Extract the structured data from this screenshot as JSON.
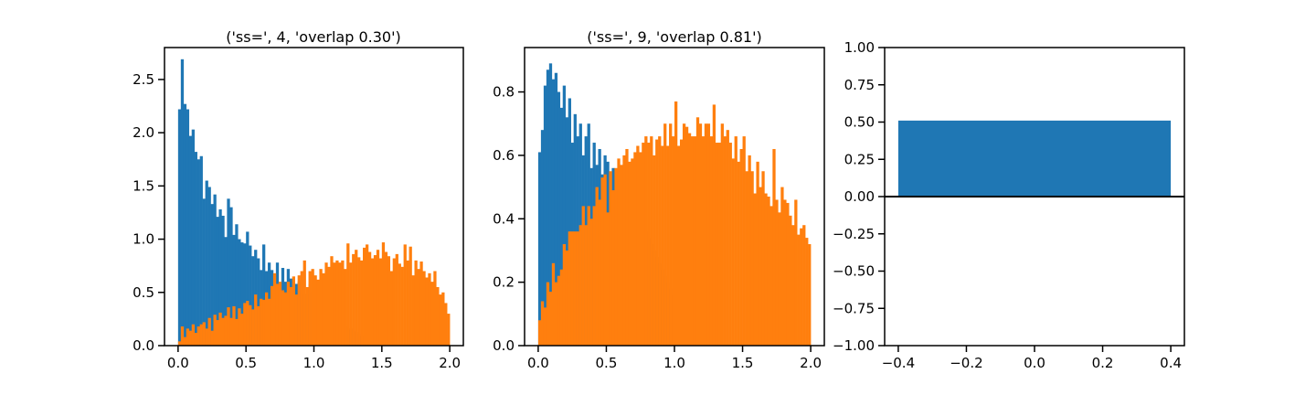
{
  "colors": {
    "series1": "#1f77b4",
    "series2": "#ff7f0e",
    "axis": "#000000",
    "background": "#ffffff"
  },
  "chart_data": [
    {
      "type": "bar",
      "subtype": "histogram",
      "title": "('ss=', 4, 'overlap 0.30')",
      "xlabel": "",
      "ylabel": "",
      "xlim": [
        -0.1,
        2.1
      ],
      "ylim": [
        0.0,
        2.8
      ],
      "xticks": [
        0.0,
        0.5,
        1.0,
        1.5,
        2.0
      ],
      "xtick_labels": [
        "0.0",
        "0.5",
        "1.0",
        "1.5",
        "2.0"
      ],
      "yticks": [
        0.0,
        0.5,
        1.0,
        1.5,
        2.0,
        2.5
      ],
      "ytick_labels": [
        "0.0",
        "0.5",
        "1.0",
        "1.5",
        "2.0",
        "2.5"
      ],
      "grid": false,
      "bin_range": [
        0.0,
        2.0
      ],
      "bin_width": 0.02,
      "series": [
        {
          "color": "#1f77b4",
          "values": [
            2.22,
            2.69,
            2.27,
            2.22,
            1.97,
            2.03,
            1.82,
            1.75,
            1.78,
            1.38,
            1.55,
            1.49,
            1.33,
            1.42,
            1.21,
            1.28,
            1.22,
            1.02,
            1.38,
            1.3,
            1.04,
            1.14,
            1.0,
            0.97,
            0.96,
            1.07,
            0.94,
            0.84,
            0.9,
            0.82,
            0.71,
            0.95,
            0.7,
            0.78,
            0.71,
            0.61,
            0.78,
            0.56,
            0.73,
            0.6,
            0.72,
            0.63,
            0.51,
            0.58,
            0.6,
            0.62,
            0.49,
            0.48,
            0.58,
            0.5,
            0.32,
            0.44,
            0.4,
            0.38,
            0.37,
            0.32,
            0.28,
            0.26,
            0.25,
            0.27,
            0.21,
            0.18,
            0.15,
            0.16,
            0.14,
            0.13,
            0.11,
            0.09,
            0.08,
            0.06,
            0.05,
            0.04,
            0.04,
            0.03,
            0.03,
            0.02,
            0.02,
            0.01,
            0.01,
            0.0,
            0.0,
            0.0,
            0.0,
            0.0,
            0.0,
            0.0,
            0.0,
            0.0,
            0.0,
            0.0,
            0.0,
            0.0,
            0.0,
            0.0,
            0.0,
            0.0,
            0.0,
            0.0,
            0.0,
            0.0
          ]
        },
        {
          "color": "#ff7f0e",
          "values": [
            0.04,
            0.18,
            0.08,
            0.16,
            0.14,
            0.2,
            0.12,
            0.18,
            0.2,
            0.22,
            0.16,
            0.26,
            0.14,
            0.29,
            0.24,
            0.31,
            0.26,
            0.28,
            0.36,
            0.26,
            0.37,
            0.25,
            0.35,
            0.3,
            0.4,
            0.42,
            0.38,
            0.34,
            0.48,
            0.37,
            0.44,
            0.43,
            0.5,
            0.44,
            0.56,
            0.68,
            0.58,
            0.6,
            0.52,
            0.5,
            0.6,
            0.55,
            0.65,
            0.48,
            0.66,
            0.7,
            0.8,
            0.55,
            0.7,
            0.72,
            0.66,
            0.62,
            0.72,
            0.68,
            0.78,
            0.74,
            0.84,
            0.78,
            0.8,
            0.78,
            0.8,
            0.72,
            0.96,
            0.78,
            0.86,
            0.9,
            0.83,
            0.8,
            0.92,
            0.95,
            0.88,
            0.82,
            0.85,
            0.9,
            0.82,
            0.97,
            0.88,
            0.84,
            0.7,
            0.82,
            0.86,
            0.77,
            0.74,
            0.95,
            0.8,
            0.93,
            0.66,
            0.8,
            0.72,
            0.79,
            0.7,
            0.64,
            0.68,
            0.6,
            0.7,
            0.55,
            0.48,
            0.5,
            0.4,
            0.3
          ]
        }
      ]
    },
    {
      "type": "bar",
      "subtype": "histogram",
      "title": "('ss=', 9, 'overlap 0.81')",
      "xlabel": "",
      "ylabel": "",
      "xlim": [
        -0.1,
        2.1
      ],
      "ylim": [
        0.0,
        0.94
      ],
      "xticks": [
        0.0,
        0.5,
        1.0,
        1.5,
        2.0
      ],
      "xtick_labels": [
        "0.0",
        "0.5",
        "1.0",
        "1.5",
        "2.0"
      ],
      "yticks": [
        0.0,
        0.2,
        0.4,
        0.6,
        0.8
      ],
      "ytick_labels": [
        "0.0",
        "0.2",
        "0.4",
        "0.6",
        "0.8"
      ],
      "grid": false,
      "bin_range": [
        0.0,
        2.0
      ],
      "bin_width": 0.02,
      "series": [
        {
          "color": "#1f77b4",
          "values": [
            0.61,
            0.68,
            0.82,
            0.87,
            0.89,
            0.84,
            0.86,
            0.8,
            0.75,
            0.82,
            0.72,
            0.78,
            0.64,
            0.73,
            0.66,
            0.7,
            0.6,
            0.66,
            0.7,
            0.56,
            0.64,
            0.57,
            0.62,
            0.54,
            0.6,
            0.58,
            0.5,
            0.56,
            0.55,
            0.46,
            0.52,
            0.48,
            0.49,
            0.44,
            0.4,
            0.46,
            0.38,
            0.42,
            0.36,
            0.36,
            0.34,
            0.32,
            0.3,
            0.28,
            0.26,
            0.24,
            0.22,
            0.2,
            0.18,
            0.16,
            0.14,
            0.12,
            0.1,
            0.08,
            0.07,
            0.06,
            0.05,
            0.04,
            0.03,
            0.02,
            0.02,
            0.01,
            0.01,
            0.0,
            0.0,
            0.0,
            0.0,
            0.0,
            0.0,
            0.0,
            0.0,
            0.0,
            0.0,
            0.0,
            0.0,
            0.0,
            0.0,
            0.0,
            0.0,
            0.0,
            0.0,
            0.0,
            0.0,
            0.0,
            0.0,
            0.0,
            0.0,
            0.0,
            0.0,
            0.0,
            0.0,
            0.0,
            0.0,
            0.0,
            0.0,
            0.0,
            0.0,
            0.0,
            0.0,
            0.0
          ]
        },
        {
          "color": "#ff7f0e",
          "values": [
            0.08,
            0.14,
            0.12,
            0.2,
            0.17,
            0.26,
            0.2,
            0.22,
            0.24,
            0.32,
            0.3,
            0.36,
            0.36,
            0.36,
            0.36,
            0.38,
            0.44,
            0.38,
            0.44,
            0.4,
            0.44,
            0.5,
            0.46,
            0.53,
            0.54,
            0.42,
            0.55,
            0.49,
            0.56,
            0.59,
            0.57,
            0.6,
            0.62,
            0.58,
            0.59,
            0.61,
            0.63,
            0.61,
            0.64,
            0.66,
            0.64,
            0.66,
            0.6,
            0.65,
            0.66,
            0.63,
            0.7,
            0.63,
            0.7,
            0.66,
            0.77,
            0.63,
            0.65,
            0.7,
            0.69,
            0.67,
            0.66,
            0.66,
            0.72,
            0.7,
            0.66,
            0.7,
            0.7,
            0.66,
            0.76,
            0.64,
            0.64,
            0.7,
            0.66,
            0.68,
            0.64,
            0.59,
            0.66,
            0.58,
            0.62,
            0.66,
            0.55,
            0.6,
            0.55,
            0.48,
            0.58,
            0.5,
            0.55,
            0.48,
            0.47,
            0.44,
            0.62,
            0.46,
            0.42,
            0.5,
            0.46,
            0.45,
            0.41,
            0.38,
            0.46,
            0.35,
            0.37,
            0.38,
            0.34,
            0.32
          ]
        }
      ]
    },
    {
      "type": "bar",
      "title": "",
      "xlabel": "",
      "ylabel": "",
      "xlim": [
        -0.44,
        0.44
      ],
      "ylim": [
        -1.0,
        1.0
      ],
      "xticks": [
        -0.4,
        -0.2,
        0.0,
        0.2,
        0.4
      ],
      "xtick_labels": [
        "−0.4",
        "−0.2",
        "0.0",
        "0.2",
        "0.4"
      ],
      "yticks": [
        -1.0,
        -0.75,
        -0.5,
        -0.25,
        0.0,
        0.25,
        0.5,
        0.75,
        1.0
      ],
      "ytick_labels": [
        "−1.00",
        "−0.75",
        "−0.50",
        "−0.25",
        "0.00",
        "0.25",
        "0.50",
        "0.75",
        "1.00"
      ],
      "grid": false,
      "zero_line": true,
      "categories": [
        0.0
      ],
      "values": [
        0.51
      ],
      "bar_width": 0.8,
      "color": "#1f77b4"
    }
  ]
}
